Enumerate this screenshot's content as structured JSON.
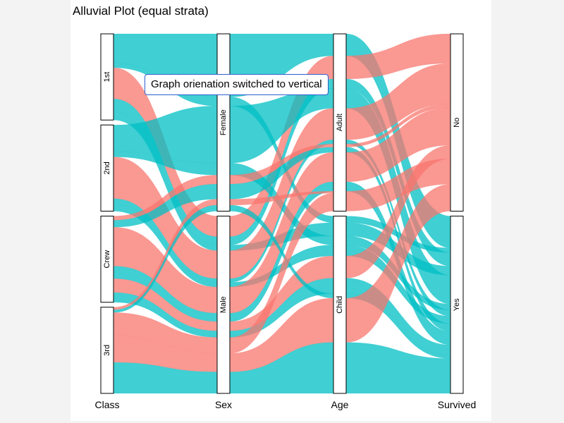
{
  "title": "Alluvial Plot (equal strata)",
  "notification": "Graph orienation switched to vertical",
  "chart_data": {
    "type": "alluvial",
    "title": "Alluvial Plot (equal strata)",
    "orientation": "vertical",
    "axes": [
      {
        "label": "Class",
        "strata": [
          "1st",
          "2nd",
          "Crew",
          "3rd"
        ]
      },
      {
        "label": "Sex",
        "strata": [
          "Female",
          "Male"
        ]
      },
      {
        "label": "Age",
        "strata": [
          "Adult",
          "Child"
        ]
      },
      {
        "label": "Survived",
        "strata": [
          "No",
          "Yes"
        ]
      }
    ],
    "fill_by": "Survived",
    "fill_colors": {
      "No": "#f8766d",
      "Yes": "#00bfc4"
    },
    "legend": "none"
  },
  "flows": [
    {
      "c": "1st",
      "s": "Female",
      "a": "Adult",
      "v": "Yes",
      "w": 42
    },
    {
      "c": "1st",
      "s": "Female",
      "a": "Child",
      "v": "Yes",
      "w": 6
    },
    {
      "c": "1st",
      "s": "Male",
      "a": "Adult",
      "v": "No",
      "w": 44
    },
    {
      "c": "1st",
      "s": "Male",
      "a": "Adult",
      "v": "Yes",
      "w": 18
    },
    {
      "c": "1st",
      "s": "Male",
      "a": "Child",
      "v": "Yes",
      "w": 12
    },
    {
      "c": "2nd",
      "s": "Female",
      "a": "Adult",
      "v": "Yes",
      "w": 38
    },
    {
      "c": "2nd",
      "s": "Female",
      "a": "Child",
      "v": "Yes",
      "w": 8
    },
    {
      "c": "2nd",
      "s": "Male",
      "a": "Adult",
      "v": "No",
      "w": 60
    },
    {
      "c": "2nd",
      "s": "Male",
      "a": "Adult",
      "v": "Yes",
      "w": 8
    },
    {
      "c": "2nd",
      "s": "Male",
      "a": "Child",
      "v": "Yes",
      "w": 10
    },
    {
      "c": "Crew",
      "s": "Female",
      "a": "Adult",
      "v": "No",
      "w": 6
    },
    {
      "c": "Crew",
      "s": "Female",
      "a": "Adult",
      "v": "Yes",
      "w": 10
    },
    {
      "c": "Crew",
      "s": "Male",
      "a": "Adult",
      "v": "No",
      "w": 56
    },
    {
      "c": "Crew",
      "s": "Male",
      "a": "Adult",
      "v": "Yes",
      "w": 18
    },
    {
      "c": "Crew",
      "s": "Male",
      "a": "Child",
      "v": "No",
      "w": 20
    },
    {
      "c": "Crew",
      "s": "Male",
      "a": "Child",
      "v": "Yes",
      "w": 14
    },
    {
      "c": "3rd",
      "s": "Female",
      "a": "Adult",
      "v": "No",
      "w": 4
    },
    {
      "c": "3rd",
      "s": "Female",
      "a": "Child",
      "v": "Yes",
      "w": 4
    },
    {
      "c": "3rd",
      "s": "Male",
      "a": "Adult",
      "v": "No",
      "w": 34
    },
    {
      "c": "3rd",
      "s": "Male",
      "a": "Child",
      "v": "No",
      "w": 40
    },
    {
      "c": "3rd",
      "s": "Male",
      "a": "Child",
      "v": "Yes",
      "w": 46
    }
  ]
}
